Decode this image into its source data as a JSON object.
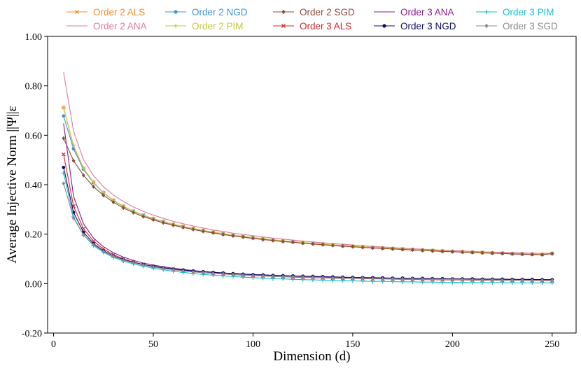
{
  "chart_data": {
    "type": "line",
    "title": "",
    "xlabel": "Dimension (d)",
    "ylabel": "Average Injective Norm ||Ψ||ε",
    "xlim": [
      -3,
      262
    ],
    "ylim": [
      -0.2,
      1.0
    ],
    "x_ticks": [
      {
        "value": 0,
        "label": "0"
      },
      {
        "value": 50,
        "label": "50"
      },
      {
        "value": 100,
        "label": "100"
      },
      {
        "value": 150,
        "label": "150"
      },
      {
        "value": 200,
        "label": "200"
      },
      {
        "value": 250,
        "label": "250"
      }
    ],
    "y_ticks": [
      {
        "value": -0.2,
        "label": "-0.20"
      },
      {
        "value": 0.0,
        "label": "0.00"
      },
      {
        "value": 0.2,
        "label": "0.20"
      },
      {
        "value": 0.4,
        "label": "0.40"
      },
      {
        "value": 0.6,
        "label": "0.60"
      },
      {
        "value": 0.8,
        "label": "0.80"
      },
      {
        "value": 1.0,
        "label": "1.00"
      }
    ],
    "grid": false,
    "legend_position": "top",
    "x": [
      5,
      10,
      15,
      20,
      25,
      30,
      35,
      40,
      45,
      50,
      55,
      60,
      65,
      70,
      75,
      80,
      85,
      90,
      95,
      100,
      105,
      110,
      115,
      120,
      125,
      130,
      135,
      140,
      145,
      150,
      155,
      160,
      165,
      170,
      175,
      180,
      185,
      190,
      195,
      200,
      205,
      210,
      215,
      220,
      225,
      230,
      235,
      240,
      245,
      250
    ],
    "series": [
      {
        "name": "Order 2 ALS",
        "color": "#f28e2b",
        "marker": "x",
        "values": [
          0.712,
          0.555,
          0.466,
          0.41,
          0.368,
          0.337,
          0.313,
          0.293,
          0.277,
          0.263,
          0.251,
          0.24,
          0.231,
          0.223,
          0.215,
          0.208,
          0.202,
          0.196,
          0.191,
          0.186,
          0.182,
          0.177,
          0.173,
          0.17,
          0.166,
          0.163,
          0.16,
          0.157,
          0.154,
          0.151,
          0.149,
          0.146,
          0.144,
          0.142,
          0.14,
          0.138,
          0.136,
          0.134,
          0.132,
          0.13,
          0.129,
          0.127,
          0.126,
          0.124,
          0.123,
          0.121,
          0.12,
          0.119,
          0.118,
          0.122
        ]
      },
      {
        "name": "Order 2 ANA",
        "color": "#e377a0",
        "marker": "none",
        "values": [
          0.855,
          0.617,
          0.501,
          0.437,
          0.392,
          0.358,
          0.332,
          0.31,
          0.292,
          0.277,
          0.264,
          0.252,
          0.242,
          0.233,
          0.225,
          0.217,
          0.211,
          0.204,
          0.199,
          0.194,
          0.189,
          0.184,
          0.18,
          0.176,
          0.172,
          0.168,
          0.165,
          0.162,
          0.159,
          0.156,
          0.153,
          0.15,
          0.148,
          0.146,
          0.143,
          0.141,
          0.139,
          0.137,
          0.135,
          0.133,
          0.132,
          0.13,
          0.128,
          0.127,
          0.126,
          0.125,
          0.124,
          0.123,
          0.122,
          0.123
        ]
      },
      {
        "name": "Order 2 NGD",
        "color": "#3b93e0",
        "marker": "circle",
        "values": [
          0.678,
          0.545,
          0.462,
          0.408,
          0.367,
          0.336,
          0.312,
          0.292,
          0.276,
          0.262,
          0.25,
          0.239,
          0.23,
          0.222,
          0.214,
          0.207,
          0.201,
          0.195,
          0.19,
          0.185,
          0.181,
          0.176,
          0.172,
          0.169,
          0.165,
          0.162,
          0.159,
          0.156,
          0.153,
          0.15,
          0.148,
          0.145,
          0.143,
          0.141,
          0.139,
          0.137,
          0.135,
          0.133,
          0.131,
          0.129,
          0.128,
          0.126,
          0.125,
          0.123,
          0.122,
          0.12,
          0.119,
          0.118,
          0.117,
          0.121
        ]
      },
      {
        "name": "Order 2 PIM",
        "color": "#c8c83a",
        "marker": "plus",
        "values": [
          0.712,
          0.559,
          0.467,
          0.41,
          0.368,
          0.337,
          0.313,
          0.293,
          0.277,
          0.263,
          0.251,
          0.24,
          0.231,
          0.223,
          0.215,
          0.208,
          0.202,
          0.196,
          0.191,
          0.186,
          0.182,
          0.177,
          0.173,
          0.17,
          0.166,
          0.163,
          0.16,
          0.157,
          0.154,
          0.151,
          0.149,
          0.146,
          0.144,
          0.142,
          0.14,
          0.138,
          0.136,
          0.134,
          0.132,
          0.13,
          0.129,
          0.127,
          0.126,
          0.124,
          0.123,
          0.121,
          0.12,
          0.119,
          0.118,
          0.122
        ]
      },
      {
        "name": "Order 2 SGD",
        "color": "#8c4a3c",
        "marker": "diamond",
        "values": [
          0.588,
          0.497,
          0.438,
          0.392,
          0.357,
          0.329,
          0.306,
          0.287,
          0.271,
          0.258,
          0.246,
          0.236,
          0.227,
          0.219,
          0.211,
          0.205,
          0.198,
          0.193,
          0.188,
          0.183,
          0.178,
          0.174,
          0.17,
          0.167,
          0.163,
          0.16,
          0.157,
          0.154,
          0.151,
          0.149,
          0.146,
          0.144,
          0.142,
          0.14,
          0.138,
          0.136,
          0.134,
          0.132,
          0.13,
          0.129,
          0.127,
          0.126,
          0.124,
          0.123,
          0.122,
          0.12,
          0.119,
          0.118,
          0.117,
          0.121
        ]
      },
      {
        "name": "Order 3 ALS",
        "color": "#d62728",
        "marker": "x",
        "values": [
          0.523,
          0.313,
          0.222,
          0.172,
          0.14,
          0.117,
          0.1,
          0.087,
          0.077,
          0.069,
          0.062,
          0.057,
          0.052,
          0.048,
          0.044,
          0.041,
          0.039,
          0.036,
          0.034,
          0.032,
          0.031,
          0.029,
          0.028,
          0.026,
          0.025,
          0.024,
          0.023,
          0.022,
          0.021,
          0.021,
          0.02,
          0.019,
          0.019,
          0.018,
          0.017,
          0.017,
          0.016,
          0.016,
          0.015,
          0.015,
          0.015,
          0.014,
          0.014,
          0.014,
          0.013,
          0.013,
          0.013,
          0.012,
          0.012,
          0.012
        ]
      },
      {
        "name": "Order 3 ANA",
        "color": "#8b1a8b",
        "marker": "none",
        "values": [
          0.648,
          0.353,
          0.242,
          0.184,
          0.149,
          0.125,
          0.107,
          0.094,
          0.083,
          0.075,
          0.068,
          0.062,
          0.057,
          0.053,
          0.049,
          0.046,
          0.043,
          0.041,
          0.039,
          0.037,
          0.035,
          0.033,
          0.032,
          0.03,
          0.029,
          0.028,
          0.027,
          0.026,
          0.025,
          0.024,
          0.024,
          0.023,
          0.022,
          0.022,
          0.021,
          0.02,
          0.02,
          0.019,
          0.019,
          0.019,
          0.018,
          0.018,
          0.017,
          0.017,
          0.017,
          0.016,
          0.016,
          0.016,
          0.016,
          0.015
        ]
      },
      {
        "name": "Order 3 NGD",
        "color": "#0d0d6b",
        "marker": "circle",
        "values": [
          0.47,
          0.288,
          0.208,
          0.162,
          0.133,
          0.112,
          0.097,
          0.086,
          0.077,
          0.07,
          0.064,
          0.059,
          0.055,
          0.051,
          0.048,
          0.045,
          0.043,
          0.04,
          0.038,
          0.036,
          0.035,
          0.033,
          0.032,
          0.031,
          0.03,
          0.029,
          0.028,
          0.027,
          0.026,
          0.025,
          0.024,
          0.024,
          0.023,
          0.022,
          0.022,
          0.021,
          0.021,
          0.02,
          0.02,
          0.019,
          0.019,
          0.019,
          0.018,
          0.018,
          0.018,
          0.017,
          0.017,
          0.017,
          0.016,
          0.016
        ]
      },
      {
        "name": "Order 3 PIM",
        "color": "#17becf",
        "marker": "plus",
        "values": [
          0.447,
          0.27,
          0.196,
          0.154,
          0.126,
          0.106,
          0.091,
          0.08,
          0.07,
          0.062,
          0.056,
          0.05,
          0.045,
          0.041,
          0.037,
          0.034,
          0.031,
          0.029,
          0.026,
          0.024,
          0.022,
          0.02,
          0.019,
          0.017,
          0.016,
          0.015,
          0.014,
          0.013,
          0.012,
          0.011,
          0.01,
          0.009,
          0.009,
          0.008,
          0.007,
          0.007,
          0.006,
          0.006,
          0.005,
          0.005,
          0.005,
          0.004,
          0.004,
          0.004,
          0.004,
          0.003,
          0.003,
          0.003,
          0.003,
          0.003
        ]
      },
      {
        "name": "Order 3 SGD",
        "color": "#8c8c8c",
        "marker": "diamond",
        "values": [
          0.405,
          0.265,
          0.197,
          0.157,
          0.13,
          0.11,
          0.095,
          0.084,
          0.075,
          0.067,
          0.061,
          0.056,
          0.051,
          0.047,
          0.044,
          0.041,
          0.039,
          0.036,
          0.034,
          0.032,
          0.031,
          0.029,
          0.028,
          0.027,
          0.026,
          0.025,
          0.024,
          0.023,
          0.022,
          0.021,
          0.021,
          0.02,
          0.019,
          0.019,
          0.018,
          0.018,
          0.017,
          0.017,
          0.016,
          0.016,
          0.016,
          0.015,
          0.015,
          0.015,
          0.014,
          0.014,
          0.014,
          0.013,
          0.013,
          0.013
        ]
      }
    ]
  }
}
